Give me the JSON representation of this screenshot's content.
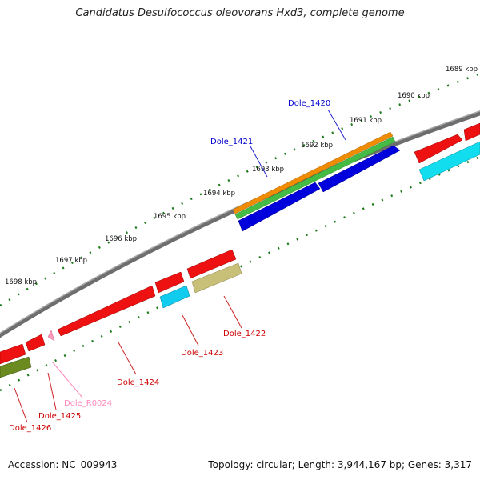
{
  "title": "Candidatus Desulfococcus oleovorans Hxd3, complete genome",
  "footer": {
    "accession": "Accession: NC_009943",
    "topology": "Topology: circular; Length: 3,944,167 bp; Genes: 3,317"
  },
  "ticks": [
    "1689 kbp",
    "1690 kbp",
    "1691 kbp",
    "1692 kbp",
    "1693 kbp",
    "1694 kbp",
    "1695 kbp",
    "1696 kbp",
    "1697 kbp",
    "1698 kbp"
  ],
  "genes": [
    {
      "label": "Dole_1420",
      "color": "#0000cc"
    },
    {
      "label": "Dole_1421",
      "color": "#0000cc"
    },
    {
      "label": "Dole_1422",
      "color": "#cc0000"
    },
    {
      "label": "Dole_1423",
      "color": "#cc0000"
    },
    {
      "label": "Dole_1424",
      "color": "#cc0000"
    },
    {
      "label": "Dole_R0024",
      "color": "#ff88bb"
    },
    {
      "label": "Dole_1425",
      "color": "#cc0000"
    },
    {
      "label": "Dole_1426",
      "color": "#cc0000"
    }
  ]
}
